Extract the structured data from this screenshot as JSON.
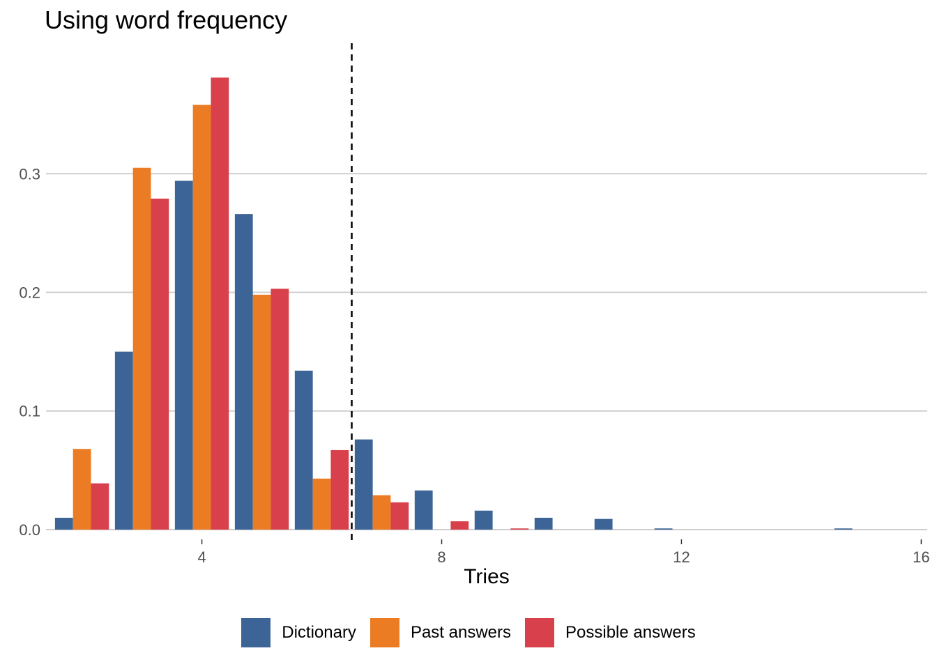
{
  "chart_data": {
    "type": "bar",
    "title": "Using word frequency",
    "xlabel": "Tries",
    "ylabel": "",
    "xlim": [
      1.4,
      16.1
    ],
    "ylim": [
      -0.01,
      0.41
    ],
    "xticks": [
      4,
      8,
      12,
      16
    ],
    "yticks": [
      0.0,
      0.1,
      0.2,
      0.3
    ],
    "ytick_labels": [
      "0.0",
      "0.1",
      "0.2",
      "0.3"
    ],
    "grid": "horizontal major",
    "legend_position": "bottom",
    "vline": {
      "x": 6.5,
      "style": "dashed"
    },
    "x": [
      2,
      3,
      4,
      5,
      6,
      7,
      8,
      9,
      10,
      11,
      12,
      13,
      14,
      15
    ],
    "series": [
      {
        "name": "Dictionary",
        "color": "#3d6496",
        "values": [
          0.01,
          0.15,
          0.294,
          0.266,
          0.134,
          0.076,
          0.033,
          0.016,
          0.01,
          0.009,
          0.001,
          0.0,
          0.0,
          0.001
        ]
      },
      {
        "name": "Past answers",
        "color": "#ec7c24",
        "values": [
          0.068,
          0.305,
          0.358,
          0.198,
          0.043,
          0.029,
          0.0,
          0.0,
          0.0,
          0.0,
          0.0,
          0.0,
          0.0,
          0.0
        ]
      },
      {
        "name": "Possible answers",
        "color": "#d8414b",
        "values": [
          0.039,
          0.279,
          0.381,
          0.203,
          0.067,
          0.023,
          0.007,
          0.001,
          0.0,
          0.0,
          0.0,
          0.0,
          0.0,
          0.0
        ]
      }
    ]
  }
}
